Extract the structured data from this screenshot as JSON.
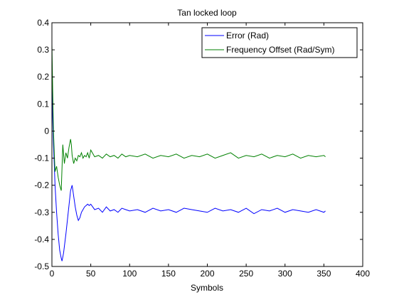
{
  "chart_data": {
    "type": "line",
    "title": "Tan locked loop",
    "xlabel": "Symbols",
    "ylabel": "",
    "xlim": [
      0,
      400
    ],
    "ylim": [
      -0.5,
      0.4
    ],
    "xticks": [
      0,
      50,
      100,
      150,
      200,
      250,
      300,
      350,
      400
    ],
    "yticks": [
      0.4,
      0.3,
      0.2,
      0.1,
      0,
      -0.1,
      -0.2,
      -0.3,
      -0.4,
      -0.5
    ],
    "xtick_labels": [
      "0",
      "50",
      "100",
      "150",
      "200",
      "250",
      "300",
      "350",
      "400"
    ],
    "ytick_labels": [
      "0.4",
      "0.3",
      "0.2",
      "0.1",
      "0",
      "-0.1",
      "-0.2",
      "-0.3",
      "-0.4",
      "-0.5"
    ],
    "grid": false,
    "legend": "top-right",
    "series": [
      {
        "name": "Error (Rad)",
        "color": "#0000ff",
        "x": [
          0,
          1,
          2,
          3,
          4,
          6,
          8,
          10,
          12,
          13,
          15,
          18,
          21,
          24,
          26,
          28,
          30,
          32,
          34,
          36,
          38,
          40,
          42,
          44,
          46,
          48,
          50,
          55,
          60,
          65,
          70,
          75,
          80,
          85,
          90,
          95,
          100,
          110,
          120,
          130,
          140,
          150,
          160,
          170,
          180,
          190,
          200,
          210,
          220,
          230,
          240,
          250,
          260,
          270,
          280,
          290,
          300,
          310,
          320,
          330,
          340,
          350,
          352
        ],
        "y": [
          0.22,
          0.05,
          -0.05,
          -0.12,
          -0.2,
          -0.3,
          -0.38,
          -0.44,
          -0.47,
          -0.48,
          -0.45,
          -0.38,
          -0.3,
          -0.22,
          -0.2,
          -0.24,
          -0.28,
          -0.31,
          -0.33,
          -0.32,
          -0.3,
          -0.29,
          -0.28,
          -0.275,
          -0.27,
          -0.275,
          -0.27,
          -0.29,
          -0.285,
          -0.3,
          -0.28,
          -0.295,
          -0.29,
          -0.3,
          -0.285,
          -0.29,
          -0.295,
          -0.29,
          -0.3,
          -0.285,
          -0.295,
          -0.29,
          -0.3,
          -0.285,
          -0.29,
          -0.295,
          -0.3,
          -0.285,
          -0.295,
          -0.29,
          -0.3,
          -0.285,
          -0.305,
          -0.29,
          -0.295,
          -0.285,
          -0.3,
          -0.29,
          -0.295,
          -0.3,
          -0.29,
          -0.3,
          -0.295
        ]
      },
      {
        "name": "Frequency Offset (Rad/Sym)",
        "color": "#008000",
        "x": [
          0,
          1,
          2,
          3,
          4,
          6,
          8,
          10,
          12,
          14,
          16,
          18,
          20,
          22,
          24,
          25,
          26,
          28,
          30,
          32,
          34,
          36,
          38,
          40,
          42,
          44,
          46,
          48,
          50,
          55,
          60,
          65,
          70,
          75,
          80,
          85,
          90,
          95,
          100,
          110,
          120,
          130,
          140,
          150,
          160,
          170,
          180,
          190,
          200,
          210,
          220,
          230,
          240,
          250,
          260,
          270,
          280,
          290,
          300,
          310,
          320,
          330,
          340,
          350,
          352
        ],
        "y": [
          0.32,
          0.15,
          0.0,
          -0.08,
          -0.15,
          -0.13,
          -0.17,
          -0.2,
          -0.22,
          -0.05,
          -0.12,
          -0.08,
          -0.1,
          -0.06,
          -0.03,
          -0.05,
          -0.09,
          -0.12,
          -0.1,
          -0.11,
          -0.09,
          -0.095,
          -0.08,
          -0.1,
          -0.09,
          -0.095,
          -0.08,
          -0.1,
          -0.07,
          -0.095,
          -0.09,
          -0.1,
          -0.085,
          -0.095,
          -0.09,
          -0.1,
          -0.085,
          -0.095,
          -0.09,
          -0.095,
          -0.085,
          -0.1,
          -0.09,
          -0.095,
          -0.085,
          -0.1,
          -0.09,
          -0.095,
          -0.085,
          -0.1,
          -0.09,
          -0.08,
          -0.1,
          -0.09,
          -0.095,
          -0.085,
          -0.1,
          -0.09,
          -0.095,
          -0.085,
          -0.1,
          -0.09,
          -0.095,
          -0.09,
          -0.095
        ]
      }
    ]
  }
}
